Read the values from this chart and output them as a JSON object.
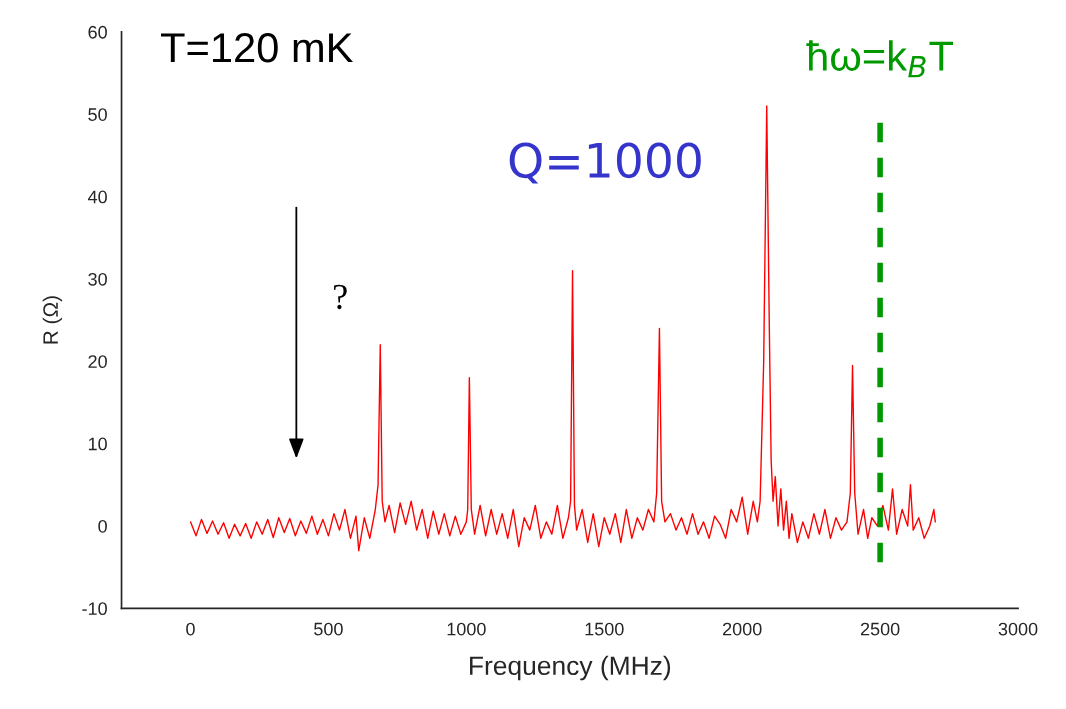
{
  "chart_data": {
    "type": "line",
    "xlabel": "Frequency (MHz)",
    "ylabel": "R (Ω)",
    "xlim": [
      -250,
      3000
    ],
    "xticks": [
      0,
      500,
      1000,
      1500,
      2000,
      2500,
      3000
    ],
    "ylim": [
      -10,
      60
    ],
    "yticks": [
      -10,
      0,
      10,
      20,
      30,
      40,
      50,
      60
    ],
    "grid": false,
    "legend": false,
    "marker": "none",
    "line_style": "solid",
    "series": [
      {
        "color": "#ff0000",
        "x": [
          0,
          20,
          40,
          60,
          80,
          100,
          120,
          140,
          160,
          180,
          200,
          220,
          240,
          260,
          280,
          300,
          320,
          340,
          360,
          380,
          400,
          420,
          440,
          460,
          480,
          500,
          520,
          540,
          560,
          580,
          600,
          610,
          630,
          650,
          670,
          680,
          688,
          695,
          705,
          720,
          740,
          760,
          780,
          800,
          820,
          840,
          860,
          880,
          900,
          920,
          940,
          960,
          980,
          1000,
          1005,
          1011,
          1018,
          1030,
          1050,
          1070,
          1090,
          1110,
          1130,
          1150,
          1170,
          1190,
          1210,
          1230,
          1250,
          1270,
          1290,
          1310,
          1330,
          1350,
          1370,
          1378,
          1385,
          1392,
          1400,
          1420,
          1440,
          1460,
          1480,
          1500,
          1520,
          1540,
          1560,
          1580,
          1600,
          1620,
          1640,
          1660,
          1680,
          1690,
          1700,
          1708,
          1720,
          1740,
          1760,
          1780,
          1800,
          1820,
          1840,
          1860,
          1880,
          1900,
          1920,
          1940,
          1960,
          1980,
          2000,
          2020,
          2040,
          2055,
          2065,
          2078,
          2089,
          2098,
          2105,
          2112,
          2120,
          2130,
          2140,
          2150,
          2160,
          2170,
          2180,
          2200,
          2220,
          2240,
          2260,
          2280,
          2300,
          2320,
          2340,
          2360,
          2380,
          2392,
          2400,
          2408,
          2420,
          2440,
          2455,
          2470,
          2490,
          2510,
          2530,
          2545,
          2560,
          2580,
          2600,
          2610,
          2620,
          2640,
          2660,
          2680,
          2695,
          2700
        ],
        "values": [
          0.5,
          -1.2,
          0.8,
          -0.9,
          0.6,
          -1.0,
          0.4,
          -1.5,
          0.2,
          -1.2,
          0.3,
          -1.5,
          0.5,
          -1.0,
          0.8,
          -1.4,
          1.0,
          -0.8,
          0.9,
          -1.2,
          0.6,
          -0.9,
          1.2,
          -1.0,
          0.8,
          -1.2,
          1.5,
          -0.5,
          2.0,
          -1.5,
          1.2,
          -3.0,
          1.0,
          -1.5,
          2.0,
          5,
          22,
          3,
          0.5,
          2.5,
          -0.8,
          2.8,
          0.2,
          3.0,
          -0.5,
          2.0,
          -1.5,
          1.8,
          -1.0,
          1.5,
          -1.2,
          1.2,
          -1.0,
          0.5,
          2,
          18,
          2,
          -1.0,
          2.5,
          -1.2,
          2.0,
          -1.0,
          1.5,
          -1.5,
          2.0,
          -2.5,
          1.0,
          -0.5,
          2.5,
          -1.5,
          0.5,
          -1.0,
          2.5,
          -1.5,
          1.0,
          3,
          31,
          2.5,
          -0.5,
          2.0,
          -2.0,
          1.5,
          -2.5,
          1.0,
          -1.0,
          1.5,
          -2.0,
          2.0,
          -1.5,
          1.0,
          -0.5,
          2.0,
          0.5,
          4,
          24,
          3,
          0.5,
          1.5,
          -0.5,
          1.0,
          -1.0,
          1.5,
          -1.0,
          0.5,
          -1.5,
          1.2,
          0.2,
          -1.5,
          2.0,
          0.5,
          3.5,
          -1.0,
          3.0,
          0.5,
          3,
          20,
          51,
          25,
          8,
          3,
          6,
          0,
          4.5,
          -0.5,
          3,
          -1.5,
          1.5,
          -2.0,
          0.5,
          -1.5,
          1.5,
          -1.0,
          2.0,
          -1.5,
          1.0,
          -0.5,
          0.5,
          4,
          19.5,
          4,
          -1.0,
          2.0,
          -1.5,
          1.0,
          0,
          2.5,
          -0.5,
          4.5,
          -1.0,
          2.0,
          0,
          5,
          -0.5,
          1.0,
          -1.5,
          0,
          2,
          0.5
        ]
      }
    ],
    "ref_lines": [
      {
        "axis": "x",
        "value": 2500,
        "label": "ħω=k$_{B}$T",
        "color": "#009900",
        "line_style": "dashed"
      }
    ],
    "annotations": [
      "T=120 mK",
      "Q=1000",
      "?"
    ]
  }
}
